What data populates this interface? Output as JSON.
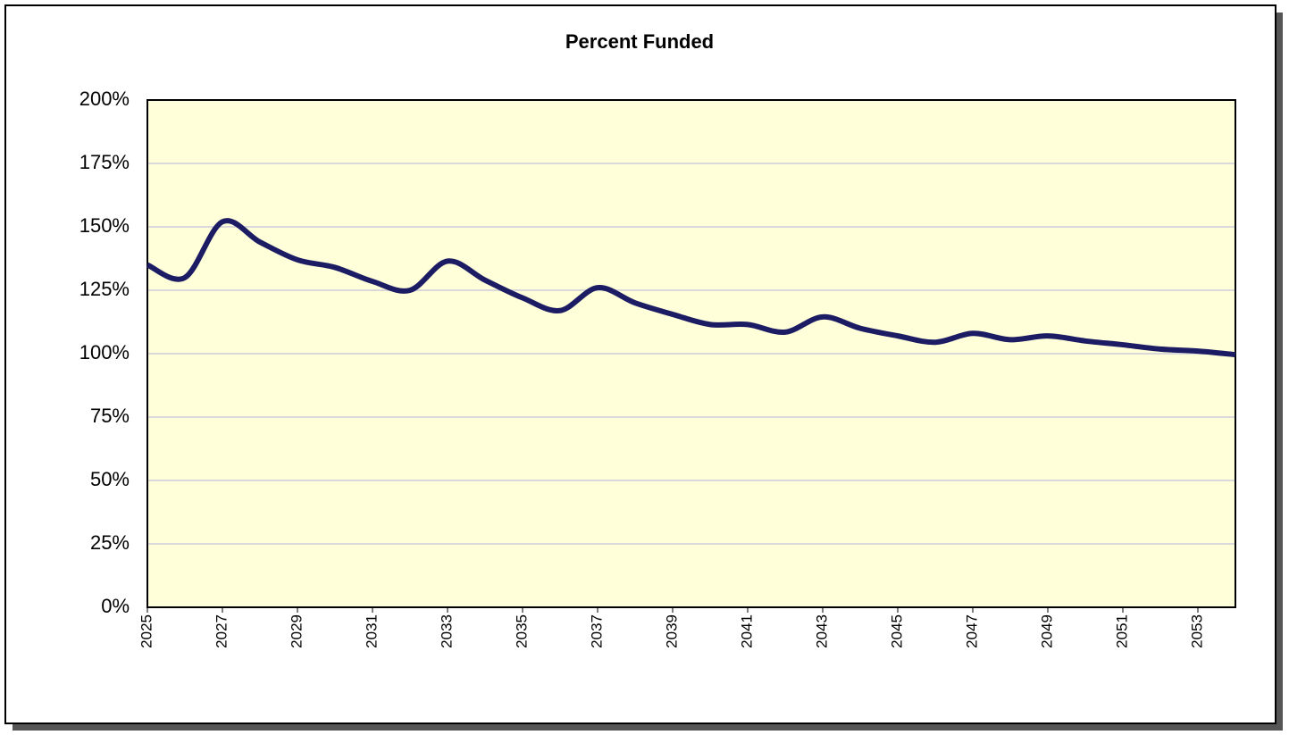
{
  "chart_data": {
    "type": "line",
    "title": "Percent Funded",
    "x": [
      2025,
      2026,
      2027,
      2028,
      2029,
      2030,
      2031,
      2032,
      2033,
      2034,
      2035,
      2036,
      2037,
      2038,
      2039,
      2040,
      2041,
      2042,
      2043,
      2044,
      2045,
      2046,
      2047,
      2048,
      2049,
      2050,
      2051,
      2052,
      2053,
      2054
    ],
    "series": [
      {
        "name": "Percent Funded",
        "color": "#1c1c64",
        "values": [
          135,
          130,
          152,
          144,
          137,
          134,
          128.5,
          125,
          136.5,
          129,
          122,
          117,
          126,
          120,
          115.5,
          111.5,
          111.5,
          108.5,
          114.5,
          110,
          107,
          104.5,
          108,
          105.5,
          107,
          105,
          103.5,
          101.8,
          101,
          99.6
        ]
      }
    ],
    "xlim": [
      2025,
      2054
    ],
    "xticks": [
      2025,
      2027,
      2029,
      2031,
      2033,
      2035,
      2037,
      2039,
      2041,
      2043,
      2045,
      2047,
      2049,
      2051,
      2053
    ],
    "ylim": [
      0,
      200
    ],
    "yticks": [
      {
        "value": 0,
        "label": "0%"
      },
      {
        "value": 25,
        "label": "25%"
      },
      {
        "value": 50,
        "label": "50%"
      },
      {
        "value": 75,
        "label": "75%"
      },
      {
        "value": 100,
        "label": "100%"
      },
      {
        "value": 125,
        "label": "125%"
      },
      {
        "value": 150,
        "label": "150%"
      },
      {
        "value": 175,
        "label": "175%"
      },
      {
        "value": 200,
        "label": "200%"
      }
    ],
    "grid": true,
    "smooth": true,
    "plot_background": "#ffffd9"
  }
}
